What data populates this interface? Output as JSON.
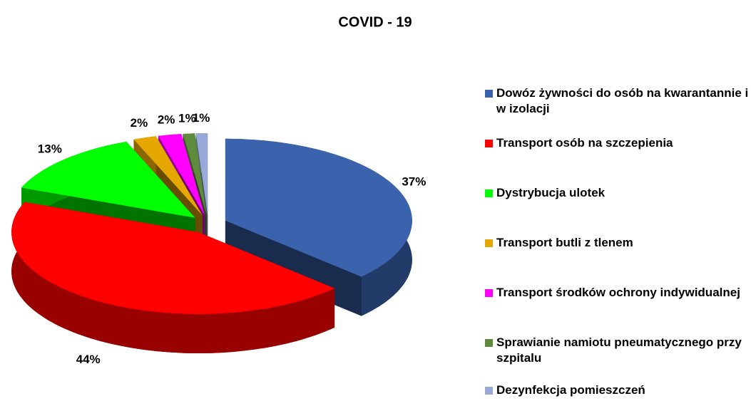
{
  "chart_data": {
    "type": "pie",
    "title": "COVID - 19",
    "categories": [
      "Dowóz żywności do osób na kwarantannie i w izolacji",
      "Transport osób na szczepienia",
      "Dystrybucja ulotek",
      "Transport butli z tlenem",
      "Transport środków ochrony indywidualnej",
      "Sprawianie namiotu pneumatycznego przy szpitalu",
      "Dezynfekcja pomieszczeń"
    ],
    "values": [
      37,
      44,
      13,
      2,
      2,
      1,
      1
    ],
    "value_labels": [
      "37%",
      "44%",
      "13%",
      "2%",
      "2%",
      "1%",
      "1%"
    ],
    "colors": [
      "#3a62ad",
      "#ff0000",
      "#00ff00",
      "#e6a800",
      "#ff00ff",
      "#5e8c3c",
      "#98a9d8"
    ],
    "legend": "right"
  }
}
